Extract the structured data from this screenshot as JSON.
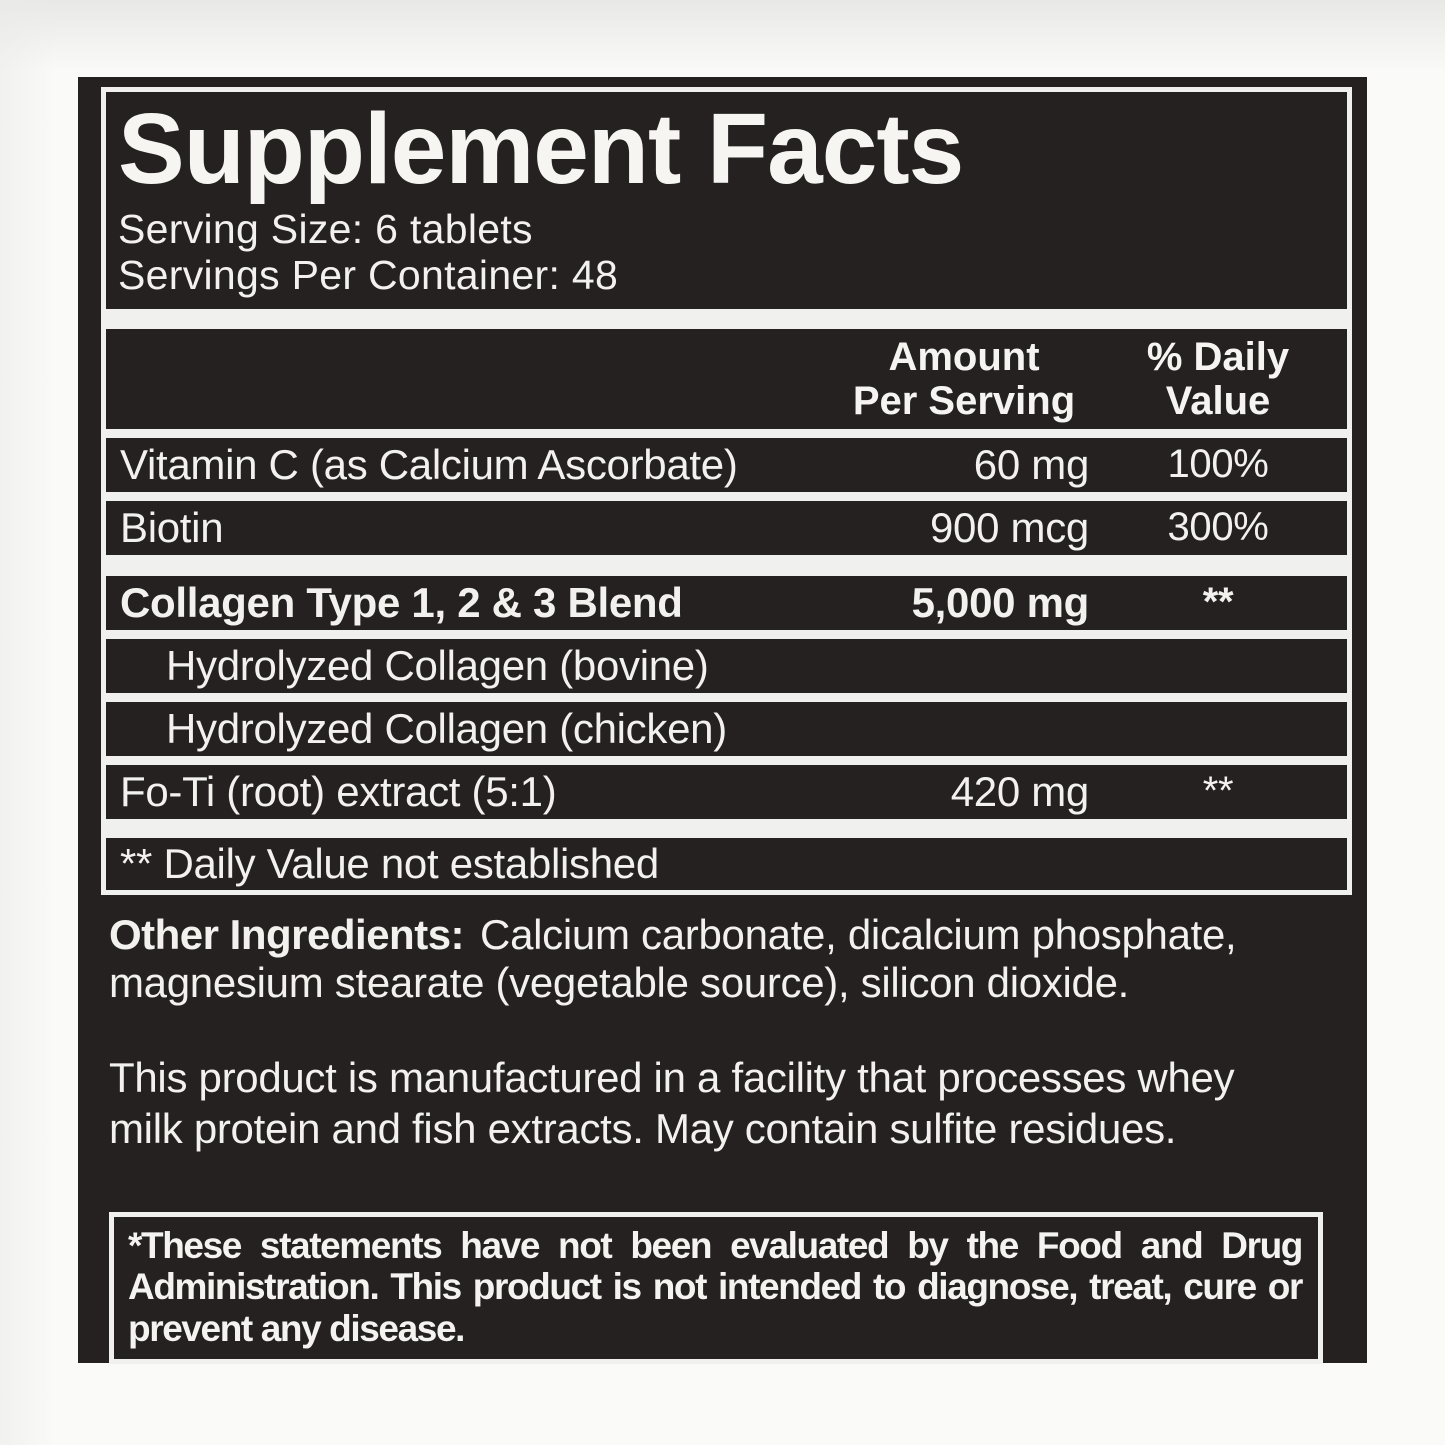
{
  "label": {
    "title": "Supplement Facts",
    "serving_size": "Serving Size: 6 tablets",
    "servings_per_container": "Servings Per Container: 48",
    "columns": {
      "amount1": "Amount",
      "amount2": "Per Serving",
      "dv1": "% Daily",
      "dv2": "Value"
    },
    "rows": [
      {
        "name": "Vitamin C (as Calcium Ascorbate)",
        "amount": "60 mg",
        "dv": "100%",
        "bold": false,
        "indent": false,
        "sep": "thin"
      },
      {
        "name": "Biotin",
        "amount": "900 mcg",
        "dv": "300%",
        "bold": false,
        "indent": false,
        "sep": "thin"
      },
      {
        "name": "Collagen Type 1, 2 & 3 Blend",
        "amount": "5,000 mg",
        "dv": "**",
        "bold": true,
        "indent": false,
        "sep": "thick"
      },
      {
        "name": "Hydrolyzed Collagen (bovine)",
        "amount": "",
        "dv": "",
        "bold": false,
        "indent": true,
        "sep": "thin"
      },
      {
        "name": "Hydrolyzed Collagen (chicken)",
        "amount": "",
        "dv": "",
        "bold": false,
        "indent": true,
        "sep": "thin"
      },
      {
        "name": "Fo-Ti (root) extract (5:1)",
        "amount": "420 mg",
        "dv": "**",
        "bold": false,
        "indent": false,
        "sep": "thin"
      }
    ],
    "footnote": "** Daily Value not established",
    "other_ingredients_label": "Other Ingredients:",
    "other_ingredients": "Calcium carbonate, dicalcium phosphate, magnesium stearate (vegetable source), silicon dioxide.",
    "allergen_statement": "This product is manufactured in a facility that processes whey milk protein and fish extracts. May contain sulfite residues.",
    "fda_disclaimer": "*These statements have not been evaluated by the Food and Drug Administration. This product is not intended to diagnose, treat, cure or prevent any disease.",
    "colors": {
      "panel_black": "#242120",
      "text_white": "#f2f1ed",
      "rule_white": "#f0f1ee",
      "page_background": "#fafaf8"
    }
  }
}
